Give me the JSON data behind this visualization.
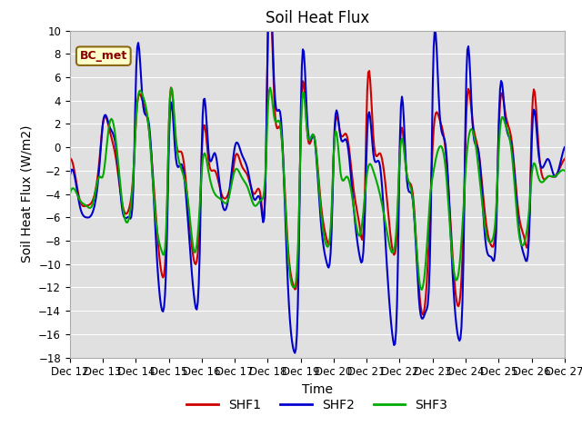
{
  "title": "Soil Heat Flux",
  "ylabel": "Soil Heat Flux (W/m2)",
  "xlabel": "Time",
  "ylim": [
    -18,
    10
  ],
  "yticks": [
    -18,
    -16,
    -14,
    -12,
    -10,
    -8,
    -6,
    -4,
    -2,
    0,
    2,
    4,
    6,
    8,
    10
  ],
  "xtick_days": [
    12,
    13,
    14,
    15,
    16,
    17,
    18,
    19,
    20,
    21,
    22,
    23,
    24,
    25,
    26,
    27
  ],
  "annotation_text": "BC_met",
  "bg_color": "#e0e0e0",
  "line_colors": {
    "SHF1": "#cc0000",
    "SHF2": "#0000cc",
    "SHF3": "#00aa00"
  },
  "line_width": 1.5,
  "title_fontsize": 12,
  "label_fontsize": 10,
  "tick_fontsize": 8.5,
  "legend_fontsize": 10,
  "shf1_ctrl_x": [
    12.0,
    12.1,
    12.3,
    12.5,
    12.7,
    12.9,
    13.0,
    13.2,
    13.4,
    13.6,
    13.8,
    13.95,
    14.0,
    14.2,
    14.4,
    14.6,
    14.8,
    14.95,
    15.0,
    15.2,
    15.4,
    15.6,
    15.8,
    15.95,
    16.0,
    16.2,
    16.4,
    16.6,
    16.8,
    16.95,
    17.0,
    17.2,
    17.4,
    17.6,
    17.8,
    17.95,
    18.0,
    18.2,
    18.4,
    18.6,
    18.8,
    18.95,
    19.0,
    19.2,
    19.4,
    19.6,
    19.8,
    19.95,
    20.0,
    20.2,
    20.4,
    20.6,
    20.8,
    20.95,
    21.0,
    21.2,
    21.4,
    21.6,
    21.8,
    21.95,
    22.0,
    22.2,
    22.4,
    22.6,
    22.8,
    22.95,
    23.0,
    23.2,
    23.4,
    23.6,
    23.8,
    23.95,
    24.0,
    24.2,
    24.4,
    24.6,
    24.8,
    24.95,
    25.0,
    25.2,
    25.4,
    25.6,
    25.8,
    25.95,
    26.0,
    26.2,
    26.5,
    26.7,
    26.9,
    27.0
  ],
  "shf1_ctrl_y": [
    -1.0,
    -1.5,
    -4.5,
    -5.0,
    -4.5,
    -1.0,
    2.0,
    1.5,
    -1.0,
    -5.0,
    -5.2,
    -1.0,
    2.0,
    4.0,
    1.5,
    -5.5,
    -11.0,
    -5.0,
    1.5,
    1.0,
    -0.5,
    -5.5,
    -10.0,
    -5.0,
    -0.5,
    -1.0,
    -2.0,
    -4.0,
    -4.0,
    -2.0,
    -1.0,
    -1.5,
    -2.5,
    -4.0,
    -4.5,
    -0.5,
    9.0,
    4.0,
    1.5,
    -8.0,
    -12.0,
    -6.0,
    1.5,
    1.2,
    1.0,
    -4.5,
    -8.0,
    -5.0,
    -0.5,
    1.2,
    1.0,
    -3.5,
    -7.0,
    -3.5,
    3.2,
    1.0,
    -0.5,
    -4.0,
    -9.0,
    -5.0,
    -0.5,
    -2.0,
    -4.0,
    -12.5,
    -12.5,
    -3.5,
    0.0,
    2.5,
    -0.5,
    -9.0,
    -13.5,
    -5.0,
    1.0,
    2.5,
    -0.5,
    -6.0,
    -8.5,
    -4.0,
    1.0,
    3.0,
    0.5,
    -5.5,
    -8.0,
    -4.5,
    1.5,
    0.5,
    -2.5,
    -2.5,
    -1.5,
    -1.0
  ],
  "shf2_ctrl_x": [
    12.0,
    12.1,
    12.3,
    12.5,
    12.7,
    12.9,
    13.0,
    13.2,
    13.4,
    13.6,
    13.8,
    13.95,
    14.0,
    14.2,
    14.4,
    14.6,
    14.8,
    14.95,
    15.0,
    15.2,
    15.4,
    15.6,
    15.8,
    15.95,
    16.0,
    16.2,
    16.4,
    16.6,
    16.8,
    16.95,
    17.0,
    17.2,
    17.4,
    17.6,
    17.8,
    17.95,
    18.0,
    18.2,
    18.4,
    18.6,
    18.8,
    18.95,
    19.0,
    19.2,
    19.4,
    19.6,
    19.8,
    19.95,
    20.0,
    20.2,
    20.4,
    20.6,
    20.8,
    20.95,
    21.0,
    21.2,
    21.4,
    21.6,
    21.8,
    21.95,
    22.0,
    22.2,
    22.4,
    22.6,
    22.8,
    22.95,
    23.0,
    23.2,
    23.4,
    23.6,
    23.8,
    23.95,
    24.0,
    24.2,
    24.4,
    24.6,
    24.8,
    24.95,
    25.0,
    25.2,
    25.4,
    25.6,
    25.8,
    25.95,
    26.0,
    26.2,
    26.5,
    26.7,
    26.9,
    27.0
  ],
  "shf2_ctrl_y": [
    -2.5,
    -2.0,
    -5.0,
    -6.0,
    -5.5,
    -1.5,
    2.0,
    1.8,
    0.0,
    -5.5,
    -6.0,
    -1.0,
    5.5,
    4.2,
    2.0,
    -7.5,
    -14.0,
    -7.0,
    0.0,
    -0.5,
    -1.5,
    -7.0,
    -13.5,
    -7.5,
    0.0,
    -0.2,
    -0.5,
    -4.5,
    -4.5,
    -1.0,
    0.0,
    -0.5,
    -2.0,
    -4.5,
    -5.0,
    -0.5,
    9.2,
    5.2,
    2.5,
    -11.0,
    -17.5,
    -8.0,
    2.5,
    2.2,
    1.0,
    -6.0,
    -10.0,
    -6.0,
    -0.5,
    1.0,
    0.5,
    -5.0,
    -9.5,
    -5.5,
    0.0,
    -0.5,
    -1.5,
    -9.5,
    -16.5,
    -9.5,
    -0.5,
    -2.0,
    -4.5,
    -13.5,
    -14.0,
    -5.0,
    4.7,
    3.5,
    0.0,
    -10.5,
    -16.5,
    -7.0,
    3.0,
    2.5,
    -0.5,
    -8.0,
    -9.5,
    -5.0,
    1.5,
    2.5,
    0.0,
    -6.5,
    -9.5,
    -5.5,
    0.0,
    -0.2,
    -1.0,
    -2.5,
    -1.0,
    0.0
  ],
  "shf3_ctrl_x": [
    12.0,
    12.1,
    12.3,
    12.5,
    12.7,
    12.9,
    13.0,
    13.2,
    13.4,
    13.6,
    13.8,
    13.95,
    14.0,
    14.2,
    14.4,
    14.6,
    14.8,
    14.95,
    15.0,
    15.2,
    15.4,
    15.6,
    15.8,
    15.95,
    16.0,
    16.2,
    16.4,
    16.6,
    16.8,
    16.95,
    17.0,
    17.2,
    17.4,
    17.6,
    17.8,
    17.95,
    18.0,
    18.2,
    18.4,
    18.6,
    18.8,
    18.95,
    19.0,
    19.2,
    19.4,
    19.6,
    19.8,
    19.95,
    20.0,
    20.2,
    20.4,
    20.6,
    20.8,
    20.95,
    21.0,
    21.2,
    21.4,
    21.6,
    21.8,
    21.95,
    22.0,
    22.2,
    22.4,
    22.6,
    22.8,
    22.95,
    23.0,
    23.2,
    23.4,
    23.6,
    23.8,
    23.95,
    24.0,
    24.2,
    24.4,
    24.6,
    24.8,
    24.95,
    25.0,
    25.2,
    25.4,
    25.6,
    25.8,
    25.95,
    26.0,
    26.2,
    26.5,
    26.7,
    26.9,
    27.0
  ],
  "shf3_ctrl_y": [
    -4.0,
    -3.5,
    -4.5,
    -5.0,
    -4.8,
    -2.5,
    -2.5,
    2.0,
    0.5,
    -5.0,
    -6.0,
    -1.0,
    2.0,
    4.5,
    1.5,
    -6.0,
    -9.0,
    -4.5,
    1.5,
    1.3,
    -2.0,
    -5.0,
    -9.0,
    -4.5,
    -2.0,
    -2.0,
    -4.0,
    -4.5,
    -4.5,
    -2.5,
    -2.0,
    -2.5,
    -3.5,
    -5.0,
    -4.5,
    -1.0,
    3.0,
    2.5,
    1.5,
    -8.5,
    -12.0,
    -5.5,
    1.0,
    1.3,
    1.0,
    -5.0,
    -8.5,
    -4.5,
    -0.5,
    -2.0,
    -2.5,
    -5.0,
    -7.5,
    -4.0,
    -2.5,
    -2.0,
    -4.0,
    -7.0,
    -9.0,
    -4.5,
    -1.0,
    -2.0,
    -4.5,
    -11.5,
    -9.5,
    -3.5,
    -2.5,
    0.0,
    -2.0,
    -9.5,
    -10.5,
    -4.5,
    -2.0,
    1.5,
    -2.0,
    -7.0,
    -8.0,
    -4.0,
    -0.5,
    2.0,
    -0.5,
    -7.0,
    -8.0,
    -4.5,
    -2.5,
    -2.5,
    -2.5,
    -2.5,
    -2.0,
    -2.0
  ]
}
